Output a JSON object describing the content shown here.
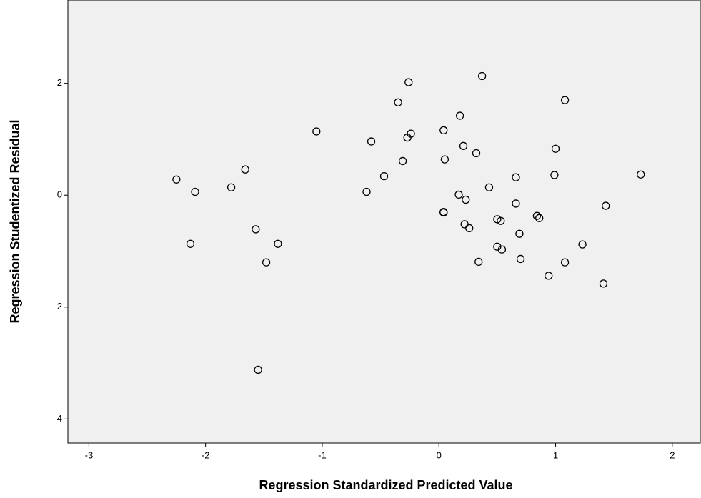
{
  "chart_data": {
    "type": "scatter",
    "x_label": "Regression Standardized Predicted Value",
    "y_label": "Regression Studentized Residual",
    "xlim": [
      -3.18,
      2.24
    ],
    "ylim": [
      -4.43,
      3.49
    ],
    "xticks": [
      -3,
      -2,
      -1,
      0,
      1,
      2
    ],
    "yticks": [
      -4,
      -2,
      0,
      2
    ],
    "color": "#000000",
    "x": [
      -2.25,
      -2.09,
      -2.13,
      -1.78,
      -1.66,
      -1.57,
      -1.38,
      -1.48,
      -1.55,
      -1.05,
      -0.62,
      -0.58,
      -0.47,
      -0.35,
      -0.31,
      -0.26,
      -0.27,
      -0.24,
      0.04,
      0.05,
      0.04,
      0.04,
      0.18,
      0.17,
      0.21,
      0.23,
      0.22,
      0.26,
      0.32,
      0.37,
      0.34,
      0.43,
      0.5,
      0.53,
      0.5,
      0.54,
      0.66,
      0.66,
      0.69,
      0.7,
      0.84,
      0.86,
      1.0,
      0.99,
      0.94,
      1.08,
      1.08,
      1.23,
      1.41,
      1.43,
      1.73
    ],
    "values": [
      0.28,
      0.06,
      -0.87,
      0.14,
      0.46,
      -0.61,
      -0.87,
      -1.2,
      -3.12,
      1.14,
      0.06,
      0.96,
      0.34,
      1.66,
      0.61,
      2.02,
      1.03,
      1.1,
      1.16,
      0.64,
      -0.31,
      -0.3,
      1.42,
      0.01,
      0.88,
      -0.08,
      -0.52,
      -0.59,
      0.75,
      2.13,
      -1.19,
      0.14,
      -0.43,
      -0.46,
      -0.92,
      -0.97,
      0.32,
      -0.15,
      -0.69,
      -1.14,
      -0.37,
      -0.41,
      0.83,
      0.36,
      -1.44,
      1.7,
      -1.2,
      -0.88,
      -1.58,
      -0.19,
      0.37
    ]
  }
}
